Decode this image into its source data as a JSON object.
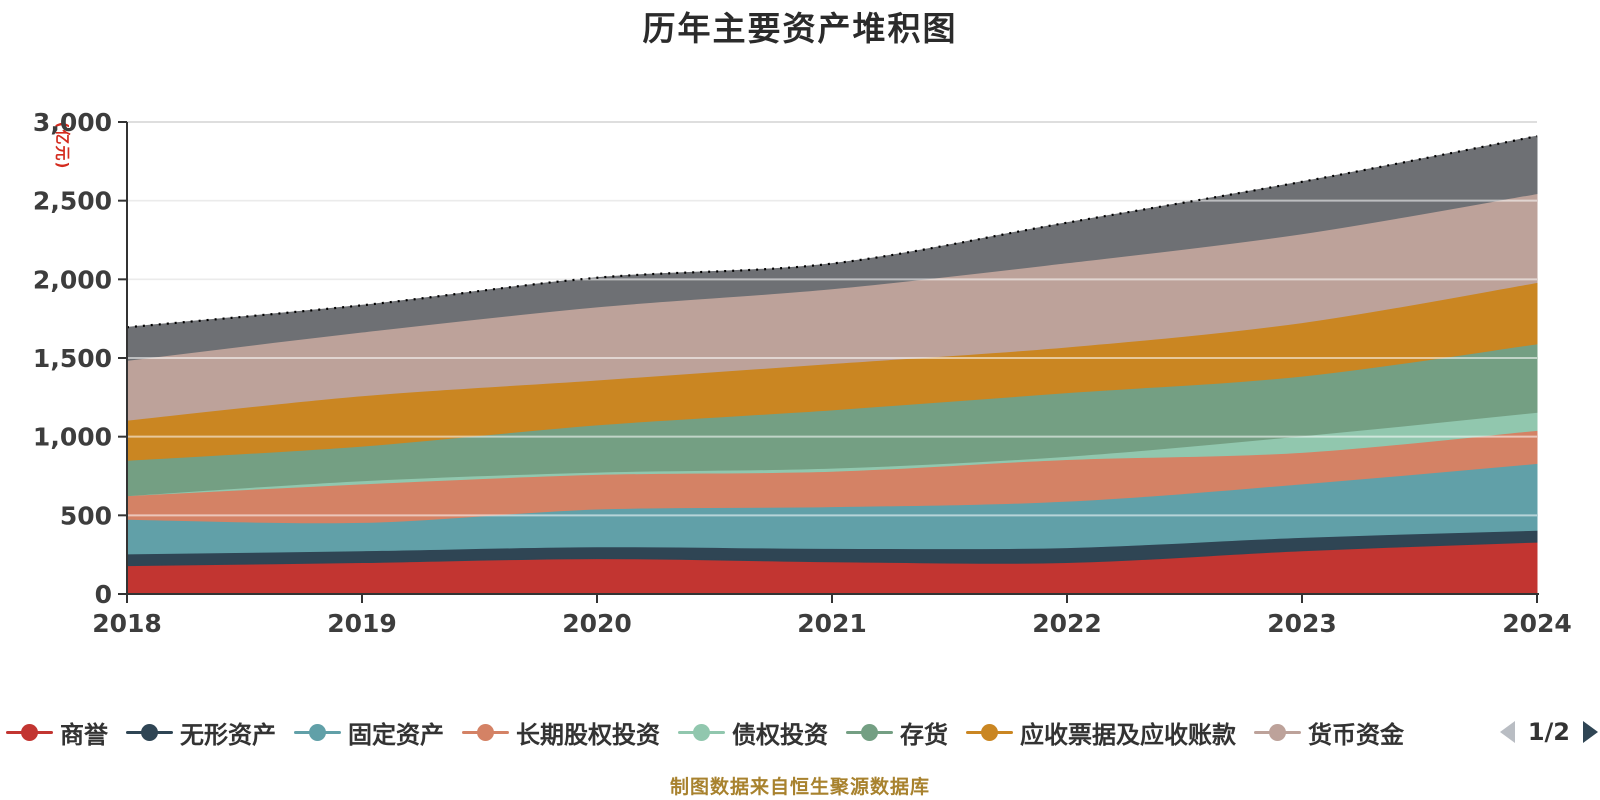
{
  "title": "历年主要资产堆积图",
  "y_axis": {
    "unit_label": "(亿元)",
    "tick_labels": [
      "0",
      "500",
      "1,000",
      "1,500",
      "2,000",
      "2,500",
      "3,000"
    ],
    "tick_values": [
      0,
      500,
      1000,
      1500,
      2000,
      2500,
      3000
    ]
  },
  "x_axis": {
    "labels": [
      "2018",
      "2019",
      "2020",
      "2021",
      "2022",
      "2023",
      "2024"
    ]
  },
  "legend": {
    "items": [
      {
        "label": "商誉",
        "color": "#c23531"
      },
      {
        "label": "无形资产",
        "color": "#2f4554"
      },
      {
        "label": "固定资产",
        "color": "#61a0a8"
      },
      {
        "label": "长期股权投资",
        "color": "#d48265"
      },
      {
        "label": "债权投资",
        "color": "#91c7ae"
      },
      {
        "label": "存货",
        "color": "#749f83"
      },
      {
        "label": "应收票据及应收账款",
        "color": "#ca8622"
      },
      {
        "label": "货币资金",
        "color": "#bda29a"
      }
    ],
    "pager": {
      "label": "1/2",
      "prev_icon_color": "#b9bdc3",
      "next_icon_color": "#2f4554"
    }
  },
  "footer": {
    "source_note": "制图数据来自恒生聚源数据库",
    "color": "#a8822e"
  },
  "colors": {
    "title": "#2b2b2b",
    "axis_text": "#3d3d3d",
    "axis_line": "#333333",
    "gridline": "#d3d3d3",
    "gridline_over_area": "rgba(255,255,255,0.55)",
    "y_unit_label": "#d42b1e",
    "total_outline": "#000000",
    "background": "#ffffff"
  },
  "chart_data": {
    "type": "area",
    "stacked": true,
    "title": "历年主要资产堆积图",
    "x": [
      2018,
      2019,
      2020,
      2021,
      2022,
      2023,
      2024
    ],
    "ylim": [
      0,
      3000
    ],
    "y_interval": 500,
    "y_unit": "亿元",
    "grid": true,
    "legend_position": "bottom",
    "series": [
      {
        "name": "商誉",
        "color": "#c23531",
        "values": [
          180,
          200,
          225,
          205,
          200,
          275,
          330
        ]
      },
      {
        "name": "无形资产",
        "color": "#2f4554",
        "values": [
          75,
          75,
          75,
          85,
          95,
          85,
          75
        ]
      },
      {
        "name": "固定资产",
        "color": "#61a0a8",
        "values": [
          220,
          180,
          240,
          265,
          295,
          340,
          425
        ]
      },
      {
        "name": "长期股权投资",
        "color": "#d48265",
        "values": [
          150,
          245,
          220,
          225,
          265,
          200,
          210
        ]
      },
      {
        "name": "债权投资",
        "color": "#91c7ae",
        "values": [
          0,
          20,
          15,
          20,
          20,
          105,
          115
        ]
      },
      {
        "name": "存货",
        "color": "#749f83",
        "values": [
          225,
          220,
          300,
          370,
          405,
          380,
          435
        ]
      },
      {
        "name": "应收票据及应收账款",
        "color": "#ca8622",
        "values": [
          255,
          320,
          285,
          295,
          290,
          340,
          390
        ]
      },
      {
        "name": "货币资金",
        "color": "#bda29a",
        "values": [
          380,
          405,
          465,
          475,
          535,
          565,
          565
        ]
      },
      {
        "name": "",
        "legend_visible": false,
        "legend_page": 2,
        "color": "#6e7074",
        "values": [
          210,
          170,
          185,
          160,
          255,
          330,
          365
        ]
      }
    ],
    "stack_totals": [
      1695,
      1835,
      2010,
      2100,
      2360,
      2620,
      2910
    ],
    "total_outline": {
      "style": "dotted",
      "color": "#000000"
    }
  }
}
